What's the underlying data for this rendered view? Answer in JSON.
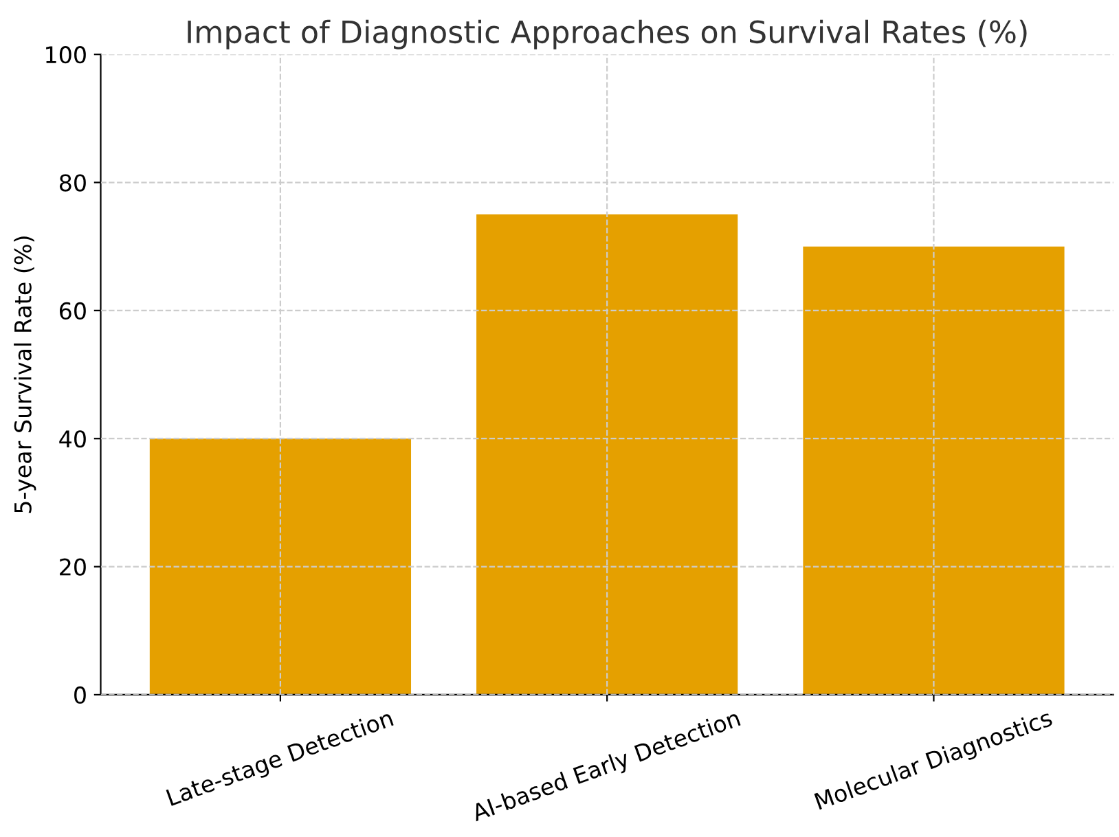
{
  "chart_data": {
    "type": "bar",
    "title": "Impact of Diagnostic Approaches on Survival Rates (%)",
    "ylabel": "5-year Survival Rate (%)",
    "categories": [
      "Late-stage Detection",
      "AI-based Early Detection",
      "Molecular Diagnostics"
    ],
    "values": [
      40,
      75,
      70
    ],
    "color": "#e5a000",
    "ylim": [
      0,
      100
    ],
    "yticks": [
      0,
      20,
      40,
      60,
      80,
      100
    ],
    "grid": true
  }
}
